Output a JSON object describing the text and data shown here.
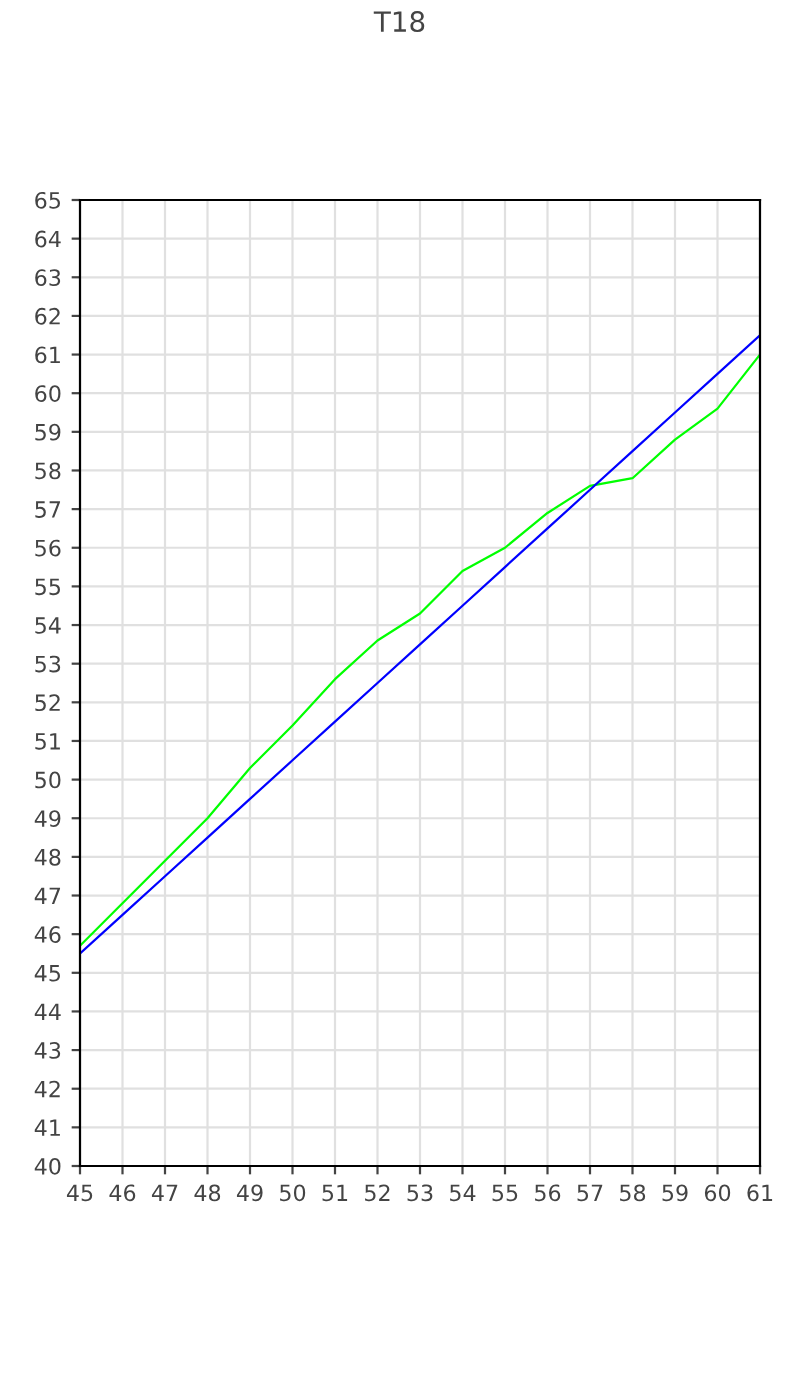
{
  "chart_data": {
    "type": "line",
    "title": "T18",
    "x": [
      45,
      46,
      47,
      48,
      49,
      50,
      51,
      52,
      53,
      54,
      55,
      56,
      57,
      58,
      59,
      60,
      61
    ],
    "series": [
      {
        "color": "#00ff00",
        "values": [
          45.7,
          46.8,
          47.9,
          49.0,
          50.3,
          51.4,
          52.6,
          53.6,
          54.3,
          55.4,
          56.0,
          56.9,
          57.6,
          57.8,
          58.8,
          59.6,
          61.0
        ]
      },
      {
        "color": "#0000ff",
        "values": [
          45.5,
          46.5,
          47.5,
          48.5,
          49.5,
          50.5,
          51.5,
          52.5,
          53.5,
          54.5,
          55.5,
          56.5,
          57.5,
          58.5,
          59.5,
          60.5,
          61.5
        ]
      }
    ],
    "xlim": [
      45,
      61
    ],
    "xticks": [
      45,
      46,
      47,
      48,
      49,
      50,
      51,
      52,
      53,
      54,
      55,
      56,
      57,
      58,
      59,
      60,
      61
    ],
    "ylim": [
      40,
      65
    ],
    "yticks": [
      40,
      41,
      42,
      43,
      44,
      45,
      46,
      47,
      48,
      49,
      50,
      51,
      52,
      53,
      54,
      55,
      56,
      57,
      58,
      59,
      60,
      61,
      62,
      63,
      64,
      65
    ],
    "grid": true,
    "marker": "none",
    "line_style": "solid"
  }
}
